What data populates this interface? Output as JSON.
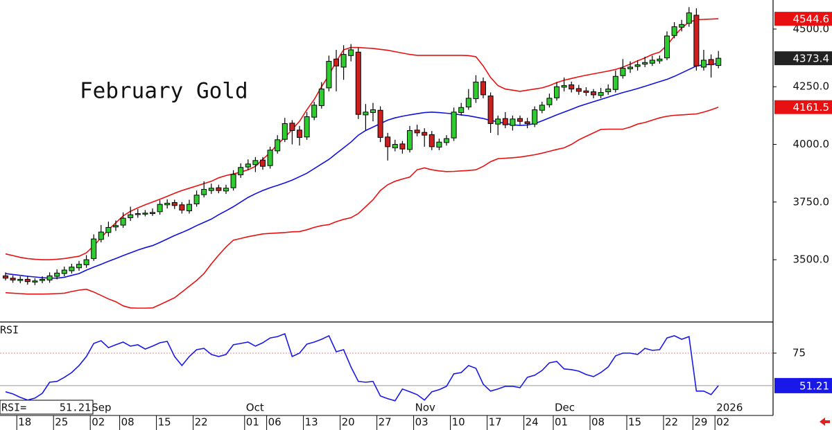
{
  "chart_data": {
    "type": "candlestick",
    "title": "February Gold",
    "categories": [
      null,
      null,
      "18",
      null,
      null,
      null,
      null,
      "25",
      null,
      null,
      null,
      null,
      "02",
      null,
      null,
      null,
      "08",
      null,
      null,
      null,
      null,
      "15",
      null,
      null,
      null,
      null,
      "22",
      null,
      null,
      null,
      null,
      null,
      null,
      "01",
      null,
      null,
      "06",
      null,
      null,
      null,
      null,
      "13",
      null,
      null,
      null,
      null,
      "20",
      null,
      null,
      null,
      null,
      "27",
      null,
      null,
      null,
      null,
      "03",
      null,
      null,
      null,
      null,
      "10",
      null,
      null,
      null,
      null,
      "17",
      null,
      null,
      null,
      null,
      "24",
      null,
      null,
      null,
      "01",
      null,
      null,
      null,
      null,
      "08",
      null,
      null,
      null,
      null,
      "15",
      null,
      null,
      null,
      null,
      "22",
      null,
      null,
      null,
      "29",
      null,
      null,
      "02"
    ],
    "months": [
      null,
      null,
      null,
      null,
      null,
      null,
      null,
      null,
      null,
      null,
      null,
      null,
      "Sep",
      null,
      null,
      null,
      null,
      null,
      null,
      null,
      null,
      null,
      null,
      null,
      null,
      null,
      null,
      null,
      null,
      null,
      null,
      null,
      null,
      "Oct",
      null,
      null,
      null,
      null,
      null,
      null,
      null,
      null,
      null,
      null,
      null,
      null,
      null,
      null,
      null,
      null,
      null,
      null,
      null,
      null,
      null,
      null,
      "Nov",
      null,
      null,
      null,
      null,
      null,
      null,
      null,
      null,
      null,
      null,
      null,
      null,
      null,
      null,
      null,
      null,
      null,
      null,
      "Dec",
      null,
      null,
      null,
      null,
      null,
      null,
      null,
      null,
      null,
      null,
      null,
      null,
      null,
      null,
      null,
      null,
      null,
      null,
      null,
      null,
      null,
      "2026"
    ],
    "open": [
      3430,
      3420,
      3410,
      3415,
      3403,
      3410,
      3412,
      3428,
      3440,
      3452,
      3465,
      3478,
      3505,
      3588,
      3618,
      3642,
      3650,
      3682,
      3696,
      3700,
      3700,
      3708,
      3738,
      3748,
      3738,
      3712,
      3742,
      3782,
      3800,
      3812,
      3798,
      3812,
      3868,
      3902,
      3912,
      3932,
      3908,
      3972,
      4022,
      4092,
      4062,
      4032,
      4118,
      4168,
      4245,
      4370,
      4335,
      4385,
      4400,
      4128,
      4138,
      4148,
      4032,
      3985,
      4002,
      3978,
      4062,
      4052,
      4042,
      3988,
      4008,
      4028,
      4138,
      4162,
      4198,
      4272,
      4210,
      4088,
      4112,
      4082,
      4112,
      4098,
      4088,
      4148,
      4172,
      4202,
      4248,
      4258,
      4242,
      4232,
      4228,
      4212,
      4228,
      4238,
      4298,
      4328,
      4338,
      4348,
      4352,
      4362,
      4375,
      4472,
      4508,
      4525,
      4560,
      4335,
      4368,
      4342
    ],
    "high": [
      3445,
      3432,
      3428,
      3430,
      3420,
      3428,
      3445,
      3458,
      3470,
      3482,
      3495,
      3520,
      3610,
      3650,
      3665,
      3670,
      3705,
      3730,
      3720,
      3715,
      3722,
      3758,
      3762,
      3760,
      3750,
      3760,
      3800,
      3840,
      3830,
      3825,
      3825,
      3888,
      3918,
      3935,
      3945,
      3945,
      3990,
      4040,
      4115,
      4105,
      4080,
      4140,
      4185,
      4270,
      4385,
      4410,
      4430,
      4435,
      4420,
      4175,
      4180,
      4165,
      4050,
      4020,
      4015,
      4080,
      4085,
      4070,
      4058,
      4025,
      4040,
      4160,
      4180,
      4240,
      4300,
      4290,
      4225,
      4125,
      4140,
      4125,
      4125,
      4115,
      4165,
      4185,
      4220,
      4270,
      4290,
      4272,
      4258,
      4248,
      4240,
      4245,
      4260,
      4320,
      4370,
      4360,
      4365,
      4380,
      4385,
      4385,
      4490,
      4530,
      4540,
      4595,
      4590,
      4410,
      4390,
      4405
    ],
    "low": [
      3410,
      3400,
      3398,
      3392,
      3390,
      3398,
      3400,
      3415,
      3428,
      3440,
      3452,
      3465,
      3495,
      3575,
      3600,
      3625,
      3638,
      3668,
      3682,
      3688,
      3690,
      3695,
      3722,
      3720,
      3700,
      3700,
      3730,
      3770,
      3785,
      3788,
      3785,
      3800,
      3855,
      3888,
      3880,
      3890,
      3895,
      3960,
      4010,
      4000,
      3995,
      4020,
      4105,
      4155,
      4230,
      4230,
      4280,
      4360,
      4110,
      4060,
      4100,
      4010,
      3930,
      3970,
      3960,
      3965,
      4035,
      3990,
      3975,
      3975,
      3995,
      4015,
      4125,
      4150,
      4180,
      4200,
      4050,
      4040,
      4070,
      4060,
      4085,
      4070,
      4075,
      4135,
      4160,
      4190,
      4230,
      4225,
      4215,
      4210,
      4200,
      4200,
      4215,
      4225,
      4285,
      4310,
      4320,
      4335,
      4340,
      4350,
      4365,
      4460,
      4490,
      4510,
      4320,
      4320,
      4290,
      4330
    ],
    "close": [
      3420,
      3412,
      3415,
      3405,
      3408,
      3415,
      3430,
      3442,
      3455,
      3468,
      3480,
      3500,
      3590,
      3620,
      3640,
      3648,
      3680,
      3695,
      3700,
      3702,
      3705,
      3740,
      3745,
      3735,
      3715,
      3740,
      3780,
      3805,
      3810,
      3800,
      3810,
      3870,
      3900,
      3915,
      3930,
      3905,
      3975,
      4020,
      4090,
      4060,
      4030,
      4120,
      4170,
      4240,
      4360,
      4340,
      4390,
      4410,
      4130,
      4140,
      4150,
      4030,
      3990,
      4000,
      3980,
      4060,
      4050,
      4040,
      3990,
      4010,
      4025,
      4140,
      4160,
      4200,
      4270,
      4215,
      4090,
      4110,
      4085,
      4110,
      4100,
      4090,
      4150,
      4170,
      4200,
      4250,
      4255,
      4240,
      4230,
      4225,
      4215,
      4225,
      4240,
      4295,
      4330,
      4335,
      4345,
      4355,
      4365,
      4370,
      4470,
      4510,
      4520,
      4570,
      4340,
      4365,
      4345,
      4373.4
    ],
    "up_color": "#2ecc2e",
    "down_color": "#cc2020",
    "last_tag_color": "#222222",
    "bands": {
      "upper": {
        "color": "#e81010",
        "values": [
          3525,
          3518,
          3510,
          3505,
          3502,
          3500,
          3500,
          3502,
          3505,
          3510,
          3515,
          3530,
          3560,
          3595,
          3630,
          3660,
          3690,
          3710,
          3725,
          3738,
          3750,
          3762,
          3775,
          3788,
          3800,
          3810,
          3820,
          3830,
          3840,
          3855,
          3865,
          3872,
          3880,
          3890,
          3905,
          3935,
          3965,
          4000,
          4030,
          4065,
          4100,
          4150,
          4195,
          4250,
          4300,
          4360,
          4410,
          4420,
          4420,
          4418,
          4416,
          4412,
          4408,
          4402,
          4396,
          4390,
          4386,
          4386,
          4386,
          4386,
          4386,
          4386,
          4386,
          4385,
          4380,
          4340,
          4290,
          4255,
          4240,
          4235,
          4230,
          4235,
          4240,
          4245,
          4255,
          4268,
          4278,
          4286,
          4293,
          4300,
          4306,
          4312,
          4318,
          4325,
          4335,
          4348,
          4362,
          4375,
          4390,
          4400,
          4430,
          4470,
          4505,
          4530,
          4540,
          4542,
          4543,
          4544.6
        ]
      },
      "middle": {
        "color": "#1010e0",
        "values": [
          3440,
          3436,
          3432,
          3428,
          3425,
          3422,
          3420,
          3420,
          3424,
          3432,
          3440,
          3455,
          3468,
          3480,
          3493,
          3505,
          3518,
          3530,
          3542,
          3552,
          3561,
          3575,
          3590,
          3605,
          3618,
          3632,
          3648,
          3662,
          3676,
          3695,
          3712,
          3730,
          3750,
          3770,
          3786,
          3800,
          3812,
          3822,
          3833,
          3845,
          3860,
          3875,
          3895,
          3915,
          3935,
          3960,
          3985,
          4010,
          4040,
          4060,
          4075,
          4090,
          4105,
          4115,
          4122,
          4128,
          4133,
          4138,
          4140,
          4138,
          4135,
          4132,
          4128,
          4124,
          4118,
          4112,
          4104,
          4098,
          4090,
          4085,
          4082,
          4084,
          4090,
          4102,
          4115,
          4128,
          4140,
          4152,
          4165,
          4175,
          4185,
          4195,
          4205,
          4215,
          4225,
          4233,
          4242,
          4252,
          4262,
          4272,
          4282,
          4295,
          4310,
          4325,
          4340,
          4345,
          4347,
          4350
        ]
      },
      "lower": {
        "color": "#e81010",
        "values": [
          3357,
          3355,
          3353,
          3351,
          3351,
          3351,
          3352,
          3353,
          3355,
          3362,
          3368,
          3372,
          3360,
          3345,
          3330,
          3318,
          3300,
          3291,
          3290,
          3290,
          3291,
          3305,
          3320,
          3335,
          3360,
          3385,
          3410,
          3440,
          3482,
          3520,
          3555,
          3585,
          3592,
          3600,
          3606,
          3612,
          3614,
          3616,
          3618,
          3621,
          3622,
          3630,
          3640,
          3648,
          3652,
          3665,
          3675,
          3682,
          3700,
          3730,
          3760,
          3800,
          3825,
          3840,
          3850,
          3858,
          3890,
          3898,
          3890,
          3885,
          3882,
          3883,
          3885,
          3887,
          3890,
          3905,
          3925,
          3938,
          3940,
          3942,
          3945,
          3950,
          3955,
          3962,
          3970,
          3978,
          3985,
          4000,
          4020,
          4035,
          4050,
          4065,
          4066,
          4066,
          4066,
          4075,
          4088,
          4095,
          4105,
          4115,
          4122,
          4126,
          4128,
          4130,
          4132,
          4140,
          4150,
          4161.5
        ]
      }
    },
    "ylim": [
      3230,
      4626
    ],
    "yticks": [
      {
        "value": 3500,
        "label": "3500.0"
      },
      {
        "value": 3750,
        "label": "3750.0"
      },
      {
        "value": 4000,
        "label": "4000.0"
      },
      {
        "value": 4250,
        "label": "4250.0"
      },
      {
        "value": 4500,
        "label": "4500.0"
      }
    ],
    "rsi": {
      "title": "RSI",
      "readout_label": "RSI=",
      "color": "#1818e8",
      "ylim": [
        40,
        97.8
      ],
      "yticks": [
        75
      ],
      "values": [
        46.7,
        45.1,
        42.6,
        40.6,
        42.1,
        45.6,
        53.7,
        54.3,
        57.3,
        60.8,
        65.9,
        72.5,
        82.1,
        84.1,
        79.0,
        81.1,
        83.1,
        80.1,
        81.1,
        78.0,
        80.1,
        82.6,
        83.6,
        72.5,
        65.9,
        72.5,
        77.5,
        78.5,
        74.0,
        72.5,
        74.0,
        81.1,
        82.1,
        83.1,
        80.1,
        82.6,
        86.1,
        87.1,
        89.2,
        72.5,
        75.0,
        81.6,
        83.1,
        85.1,
        87.7,
        76.0,
        77.5,
        64.9,
        54.3,
        53.7,
        54.3,
        43.6,
        41.6,
        40.1,
        48.7,
        46.7,
        44.6,
        40.6,
        46.7,
        48.2,
        50.7,
        59.8,
        60.8,
        65.9,
        63.9,
        52.2,
        47.2,
        48.7,
        50.7,
        50.7,
        49.7,
        57.3,
        58.8,
        62.3,
        67.9,
        68.9,
        63.4,
        62.9,
        61.8,
        59.3,
        57.8,
        60.8,
        64.9,
        73.0,
        75.0,
        75.0,
        74.0,
        78.5,
        77.0,
        77.5,
        86.1,
        87.7,
        85.1,
        87.1,
        47.2,
        47.2,
        44.6,
        51.21
      ]
    }
  }
}
